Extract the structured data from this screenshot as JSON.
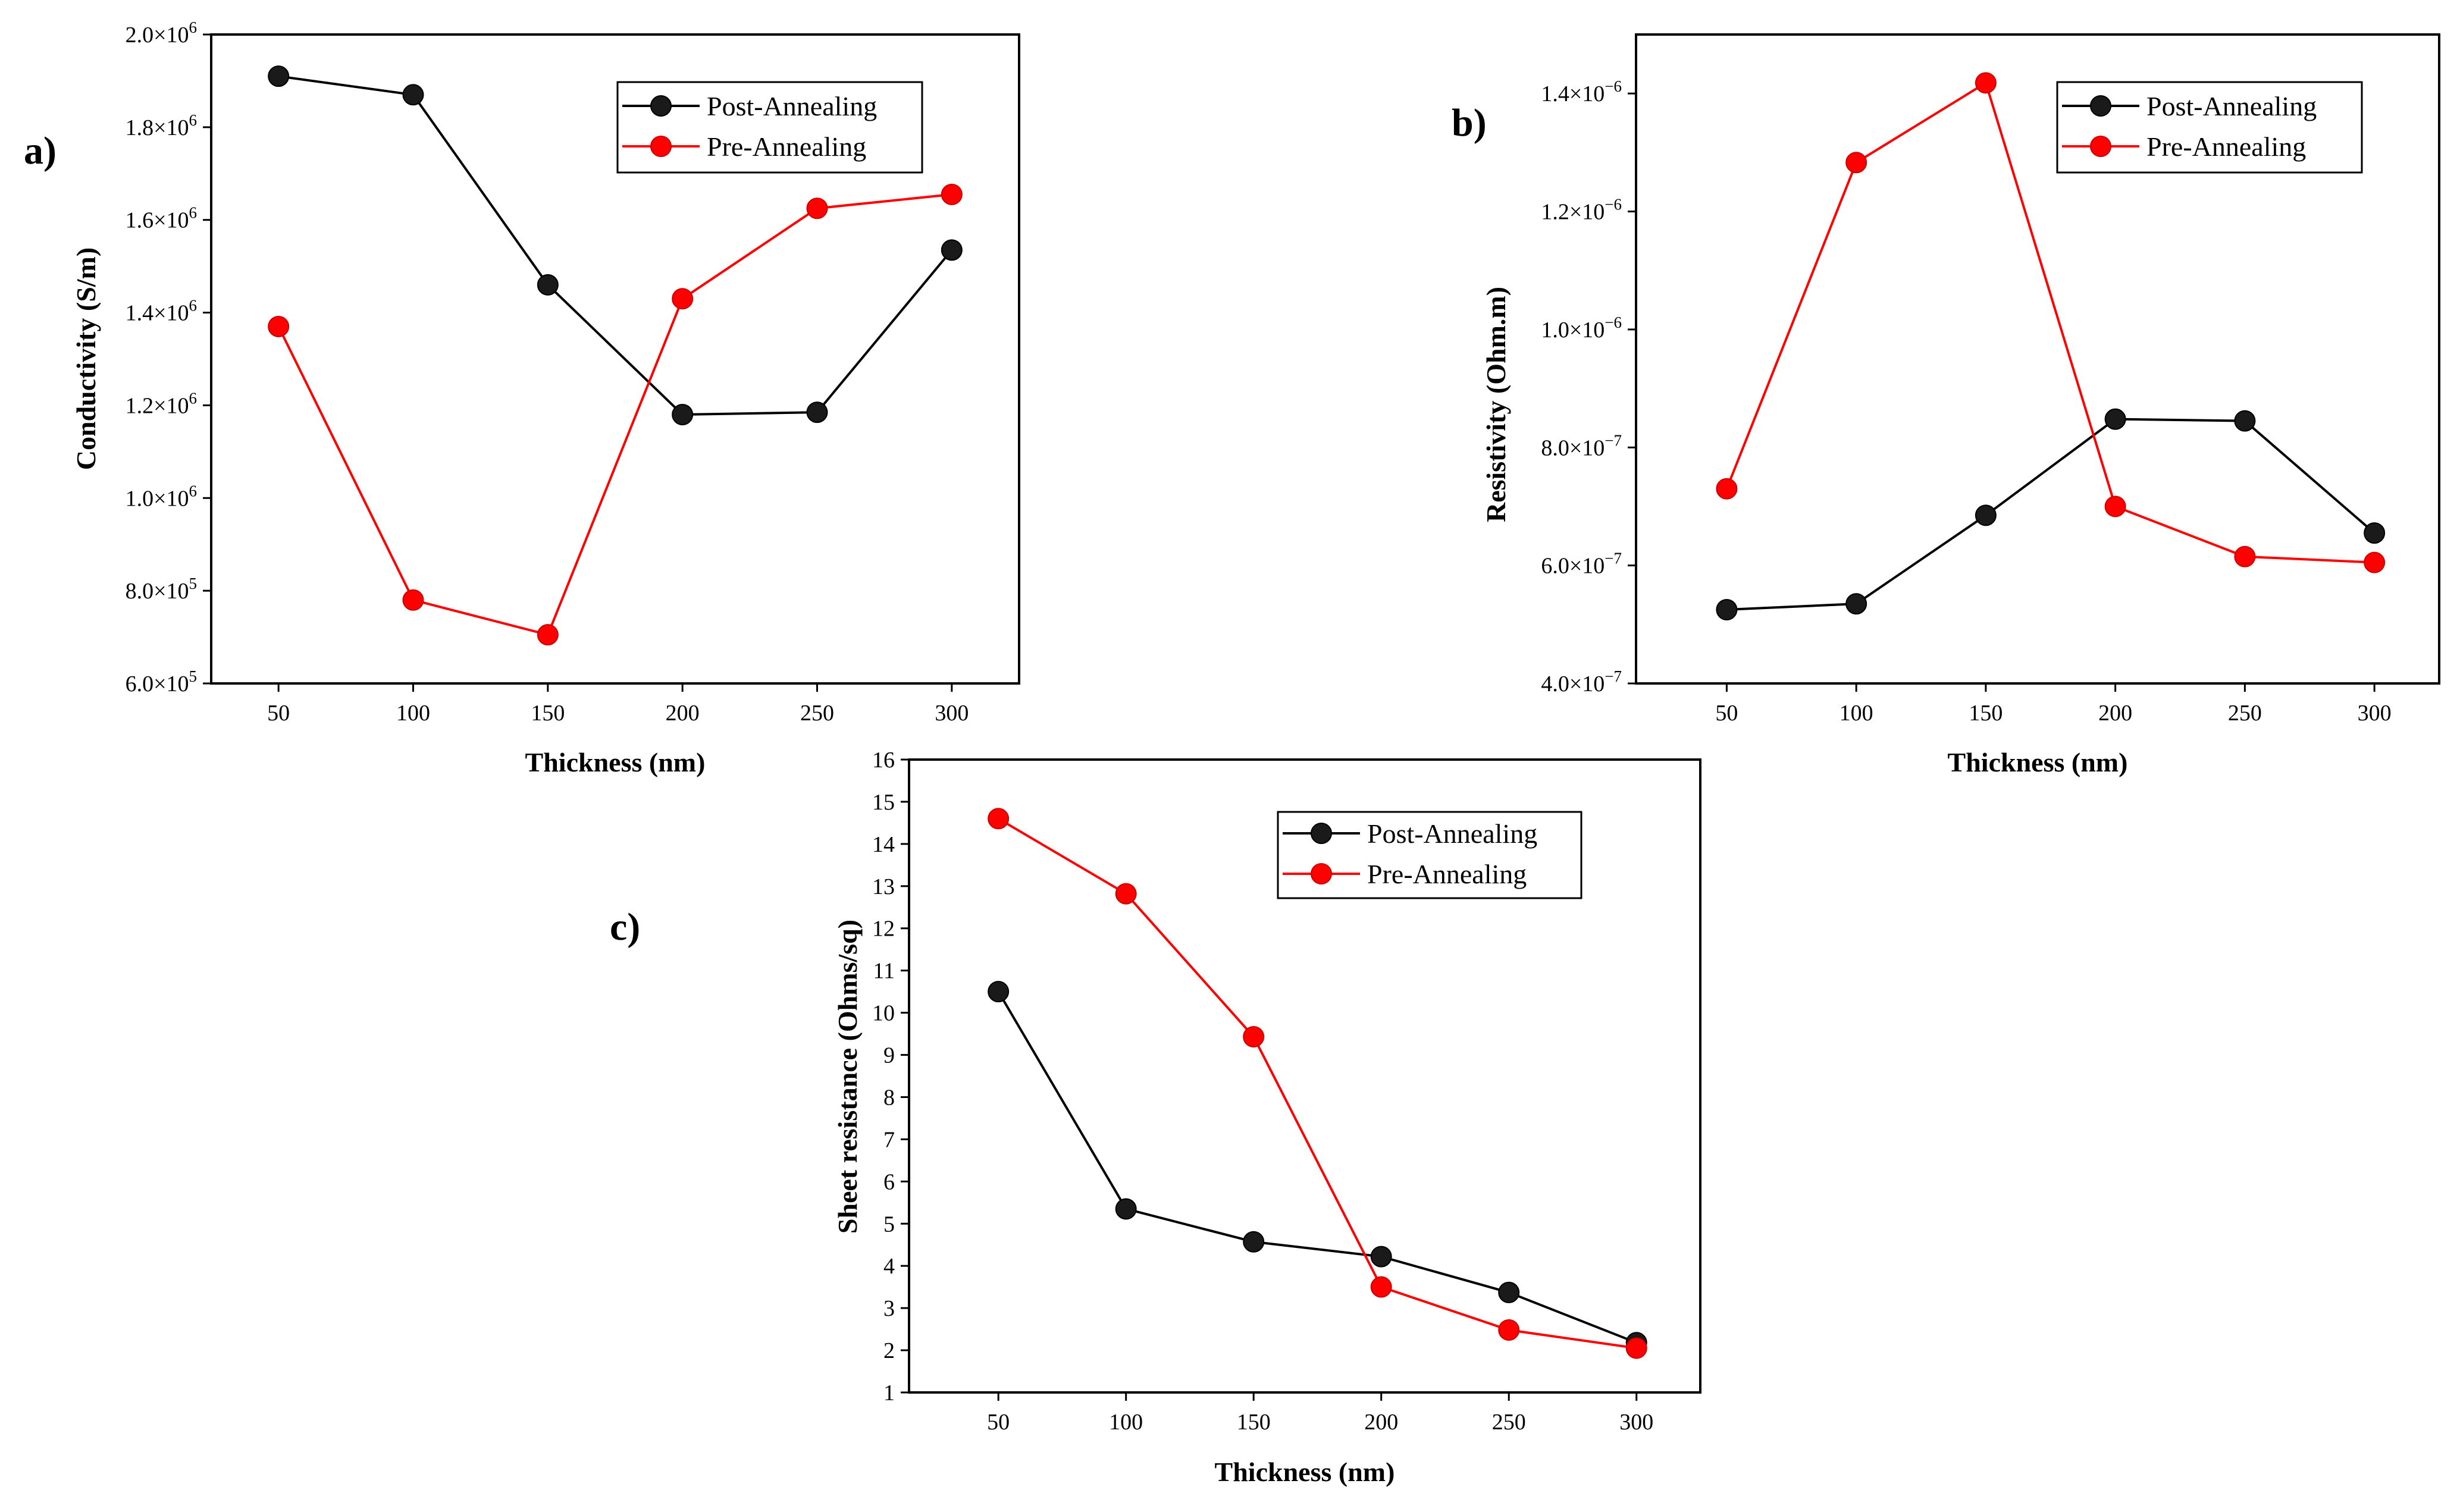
{
  "chart_data": [
    {
      "id": "a",
      "type": "line",
      "panel_label": "a)",
      "xlabel": "Thickness (nm)",
      "ylabel": "Conductivity (S/m)",
      "x": [
        50,
        100,
        150,
        200,
        250,
        300
      ],
      "xlim": [
        25,
        325
      ],
      "ylim": [
        600000,
        2000000
      ],
      "xticks": [
        50,
        100,
        150,
        200,
        250,
        300
      ],
      "yticks": [
        {
          "value": 600000,
          "mantissa": "6.0×10",
          "exp": "5"
        },
        {
          "value": 800000,
          "mantissa": "8.0×10",
          "exp": "5"
        },
        {
          "value": 1000000,
          "mantissa": "1.0×10",
          "exp": "6"
        },
        {
          "value": 1200000,
          "mantissa": "1.2×10",
          "exp": "6"
        },
        {
          "value": 1400000,
          "mantissa": "1.4×10",
          "exp": "6"
        },
        {
          "value": 1600000,
          "mantissa": "1.6×10",
          "exp": "6"
        },
        {
          "value": 1800000,
          "mantissa": "1.8×10",
          "exp": "6"
        },
        {
          "value": 2000000,
          "mantissa": "2.0×10",
          "exp": "6"
        }
      ],
      "legend_position": "top-right",
      "series": [
        {
          "name": "Post-Annealing",
          "color": "#000000",
          "values": [
            1910000,
            1870000,
            1460000,
            1180000,
            1185000,
            1535000
          ]
        },
        {
          "name": "Pre-Annealing",
          "color": "#ff0000",
          "values": [
            1370000,
            780000,
            705000,
            1430000,
            1625000,
            1655000
          ]
        }
      ]
    },
    {
      "id": "b",
      "type": "line",
      "panel_label": "b)",
      "xlabel": "Thickness (nm)",
      "ylabel": "Resistivity (Ohm.m)",
      "x": [
        50,
        100,
        150,
        200,
        250,
        300
      ],
      "xlim": [
        15,
        325
      ],
      "ylim": [
        4e-07,
        1.5e-06
      ],
      "xticks": [
        50,
        100,
        150,
        200,
        250,
        300
      ],
      "yticks": [
        {
          "value": 4e-07,
          "mantissa": "4.0×10",
          "exp": "−7"
        },
        {
          "value": 6e-07,
          "mantissa": "6.0×10",
          "exp": "−7"
        },
        {
          "value": 8e-07,
          "mantissa": "8.0×10",
          "exp": "−7"
        },
        {
          "value": 1e-06,
          "mantissa": "1.0×10",
          "exp": "−6"
        },
        {
          "value": 1.2e-06,
          "mantissa": "1.2×10",
          "exp": "−6"
        },
        {
          "value": 1.4e-06,
          "mantissa": "1.4×10",
          "exp": "−6"
        }
      ],
      "legend_position": "top-right",
      "series": [
        {
          "name": "Post-Annealing",
          "color": "#000000",
          "values": [
            5.25e-07,
            5.35e-07,
            6.85e-07,
            8.48e-07,
            8.45e-07,
            6.55e-07
          ]
        },
        {
          "name": "Pre-Annealing",
          "color": "#ff0000",
          "values": [
            7.3e-07,
            1.283e-06,
            1.418e-06,
            7e-07,
            6.15e-07,
            6.05e-07
          ]
        }
      ]
    },
    {
      "id": "c",
      "type": "line",
      "panel_label": "c)",
      "xlabel": "Thickness (nm)",
      "ylabel": "Sheet resistance (Ohms/sq)",
      "x": [
        50,
        100,
        150,
        200,
        250,
        300
      ],
      "xlim": [
        15,
        325
      ],
      "ylim": [
        1,
        16
      ],
      "xticks": [
        50,
        100,
        150,
        200,
        250,
        300
      ],
      "yticks": [
        {
          "value": 1,
          "mantissa": "1"
        },
        {
          "value": 2,
          "mantissa": "2"
        },
        {
          "value": 3,
          "mantissa": "3"
        },
        {
          "value": 4,
          "mantissa": "4"
        },
        {
          "value": 5,
          "mantissa": "5"
        },
        {
          "value": 6,
          "mantissa": "6"
        },
        {
          "value": 7,
          "mantissa": "7"
        },
        {
          "value": 8,
          "mantissa": "8"
        },
        {
          "value": 9,
          "mantissa": "9"
        },
        {
          "value": 10,
          "mantissa": "10"
        },
        {
          "value": 11,
          "mantissa": "11"
        },
        {
          "value": 12,
          "mantissa": "12"
        },
        {
          "value": 13,
          "mantissa": "13"
        },
        {
          "value": 14,
          "mantissa": "14"
        },
        {
          "value": 15,
          "mantissa": "15"
        },
        {
          "value": 16,
          "mantissa": "16"
        }
      ],
      "legend_position": "top-right",
      "series": [
        {
          "name": "Post-Annealing",
          "color": "#000000",
          "values": [
            10.5,
            5.35,
            4.57,
            4.22,
            3.37,
            2.18
          ]
        },
        {
          "name": "Pre-Annealing",
          "color": "#ff0000",
          "values": [
            14.6,
            12.82,
            9.43,
            3.5,
            2.48,
            2.05
          ]
        }
      ]
    }
  ]
}
